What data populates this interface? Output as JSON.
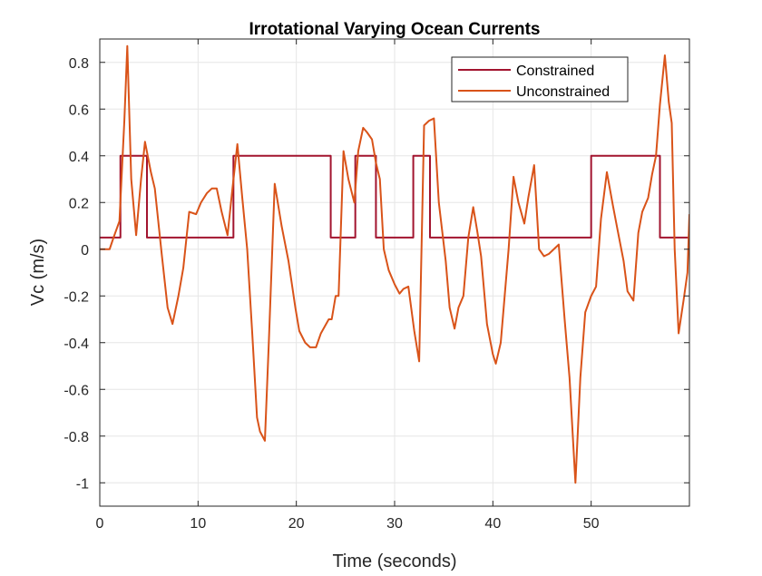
{
  "chart_data": {
    "type": "line",
    "title": "Irrotational Varying Ocean Currents",
    "xlabel": "Time (seconds)",
    "ylabel": "Vc (m/s)",
    "xlim": [
      0,
      60
    ],
    "ylim": [
      -1.1,
      0.9
    ],
    "xticks": [
      0,
      10,
      20,
      30,
      40,
      50
    ],
    "yticks": [
      -1,
      -0.8,
      -0.6,
      -0.4,
      -0.2,
      0,
      0.2,
      0.4,
      0.6,
      0.8
    ],
    "grid": true,
    "legend_position": "top-right",
    "series": [
      {
        "name": "Constrained",
        "color": "#A2142F",
        "step": true,
        "x": [
          0,
          2.1,
          2.1,
          4.8,
          4.8,
          13.6,
          13.6,
          23.5,
          23.5,
          26.0,
          26.0,
          27.7,
          27.7,
          28.1,
          28.1,
          31.9,
          31.9,
          33.6,
          33.6,
          50.0,
          50.0,
          57.0,
          57.0,
          60.0
        ],
        "y": [
          0.05,
          0.05,
          0.4,
          0.4,
          0.05,
          0.05,
          0.4,
          0.4,
          0.05,
          0.05,
          0.4,
          0.4,
          0.4,
          0.4,
          0.05,
          0.05,
          0.4,
          0.4,
          0.05,
          0.05,
          0.4,
          0.4,
          0.05,
          0.05
        ]
      },
      {
        "name": "Unconstrained",
        "color": "#D95319",
        "step": false,
        "x": [
          0,
          1.0,
          1.4,
          2.0,
          2.5,
          2.8,
          3.2,
          3.7,
          4.2,
          4.6,
          5.2,
          5.6,
          6.3,
          6.9,
          7.4,
          8.0,
          8.5,
          9.1,
          9.8,
          10.3,
          10.9,
          11.4,
          11.9,
          12.4,
          13.0,
          13.5,
          14.0,
          14.5,
          15.0,
          15.5,
          16.0,
          16.3,
          16.8,
          17.2,
          17.8,
          18.5,
          19.2,
          19.9,
          20.3,
          20.9,
          21.4,
          22.0,
          22.5,
          22.9,
          23.3,
          23.6,
          24.0,
          24.3,
          24.8,
          25.3,
          25.9,
          26.3,
          26.8,
          27.2,
          27.7,
          28.1,
          28.5,
          28.9,
          29.4,
          30.0,
          30.5,
          30.9,
          31.4,
          32.0,
          32.5,
          33.0,
          33.5,
          34.0,
          34.5,
          35.2,
          35.6,
          36.1,
          36.5,
          37.0,
          37.5,
          38.0,
          38.4,
          38.8,
          39.4,
          40.0,
          40.3,
          40.8,
          41.2,
          41.6,
          42.1,
          42.6,
          43.2,
          43.6,
          44.2,
          44.7,
          45.2,
          45.7,
          46.2,
          46.7,
          47.3,
          47.8,
          48.4,
          48.9,
          49.4,
          50.0,
          50.5,
          51.0,
          51.6,
          52.2,
          52.7,
          53.3,
          53.7,
          54.3,
          54.8,
          55.2,
          55.8,
          56.2,
          56.6,
          57.0,
          57.5,
          57.9,
          58.2,
          58.5,
          58.9,
          59.4,
          59.8,
          60.0
        ],
        "y": [
          0,
          0,
          0.05,
          0.12,
          0.55,
          0.87,
          0.3,
          0.06,
          0.3,
          0.46,
          0.33,
          0.26,
          -0.02,
          -0.25,
          -0.32,
          -0.2,
          -0.08,
          0.16,
          0.15,
          0.2,
          0.24,
          0.26,
          0.26,
          0.16,
          0.06,
          0.26,
          0.45,
          0.22,
          0.0,
          -0.35,
          -0.72,
          -0.78,
          -0.82,
          -0.4,
          0.28,
          0.1,
          -0.05,
          -0.25,
          -0.35,
          -0.4,
          -0.42,
          -0.42,
          -0.36,
          -0.33,
          -0.3,
          -0.3,
          -0.2,
          -0.2,
          0.42,
          0.3,
          0.2,
          0.42,
          0.52,
          0.5,
          0.47,
          0.37,
          0.3,
          0.0,
          -0.09,
          -0.15,
          -0.19,
          -0.17,
          -0.16,
          -0.35,
          -0.48,
          0.53,
          0.55,
          0.56,
          0.2,
          -0.05,
          -0.25,
          -0.34,
          -0.25,
          -0.2,
          0.05,
          0.18,
          0.08,
          -0.03,
          -0.32,
          -0.45,
          -0.49,
          -0.4,
          -0.2,
          0.0,
          0.31,
          0.2,
          0.11,
          0.22,
          0.36,
          0.0,
          -0.03,
          -0.02,
          0.0,
          0.02,
          -0.3,
          -0.55,
          -1.0,
          -0.55,
          -0.27,
          -0.2,
          -0.16,
          0.13,
          0.33,
          0.19,
          0.08,
          -0.05,
          -0.18,
          -0.22,
          0.07,
          0.16,
          0.22,
          0.32,
          0.4,
          0.62,
          0.83,
          0.63,
          0.54,
          0.0,
          -0.36,
          -0.22,
          -0.1,
          0.15
        ]
      }
    ]
  }
}
